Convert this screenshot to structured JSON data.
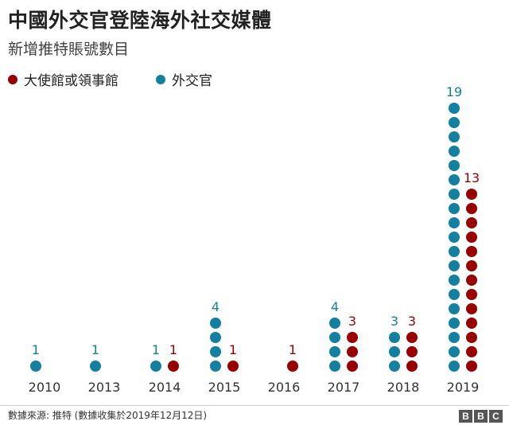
{
  "title": "中國外交官登陸海外社交媒體",
  "subtitle": "新增推特賬號數目",
  "chart_data": {
    "type": "dot-column",
    "title": "中國外交官登陸海外社交媒體",
    "subtitle": "新增推特賬號數目",
    "categories": [
      "2010",
      "2013",
      "2014",
      "2015",
      "2016",
      "2017",
      "2018",
      "2019"
    ],
    "series": [
      {
        "name": "外交官",
        "color": "#1380a1",
        "values": [
          1,
          1,
          1,
          4,
          0,
          4,
          3,
          19
        ]
      },
      {
        "name": "大使館或領事館",
        "color": "#990000",
        "values": [
          0,
          0,
          1,
          1,
          1,
          3,
          3,
          13
        ]
      }
    ],
    "legend": [
      {
        "name": "大使館或領事館",
        "color": "#990000"
      },
      {
        "name": "外交官",
        "color": "#1380a1"
      }
    ]
  },
  "footer": {
    "source": "數據來源: 推特 (數據收集於2019年12月12日)",
    "logo_letters": [
      "B",
      "B",
      "C"
    ]
  }
}
